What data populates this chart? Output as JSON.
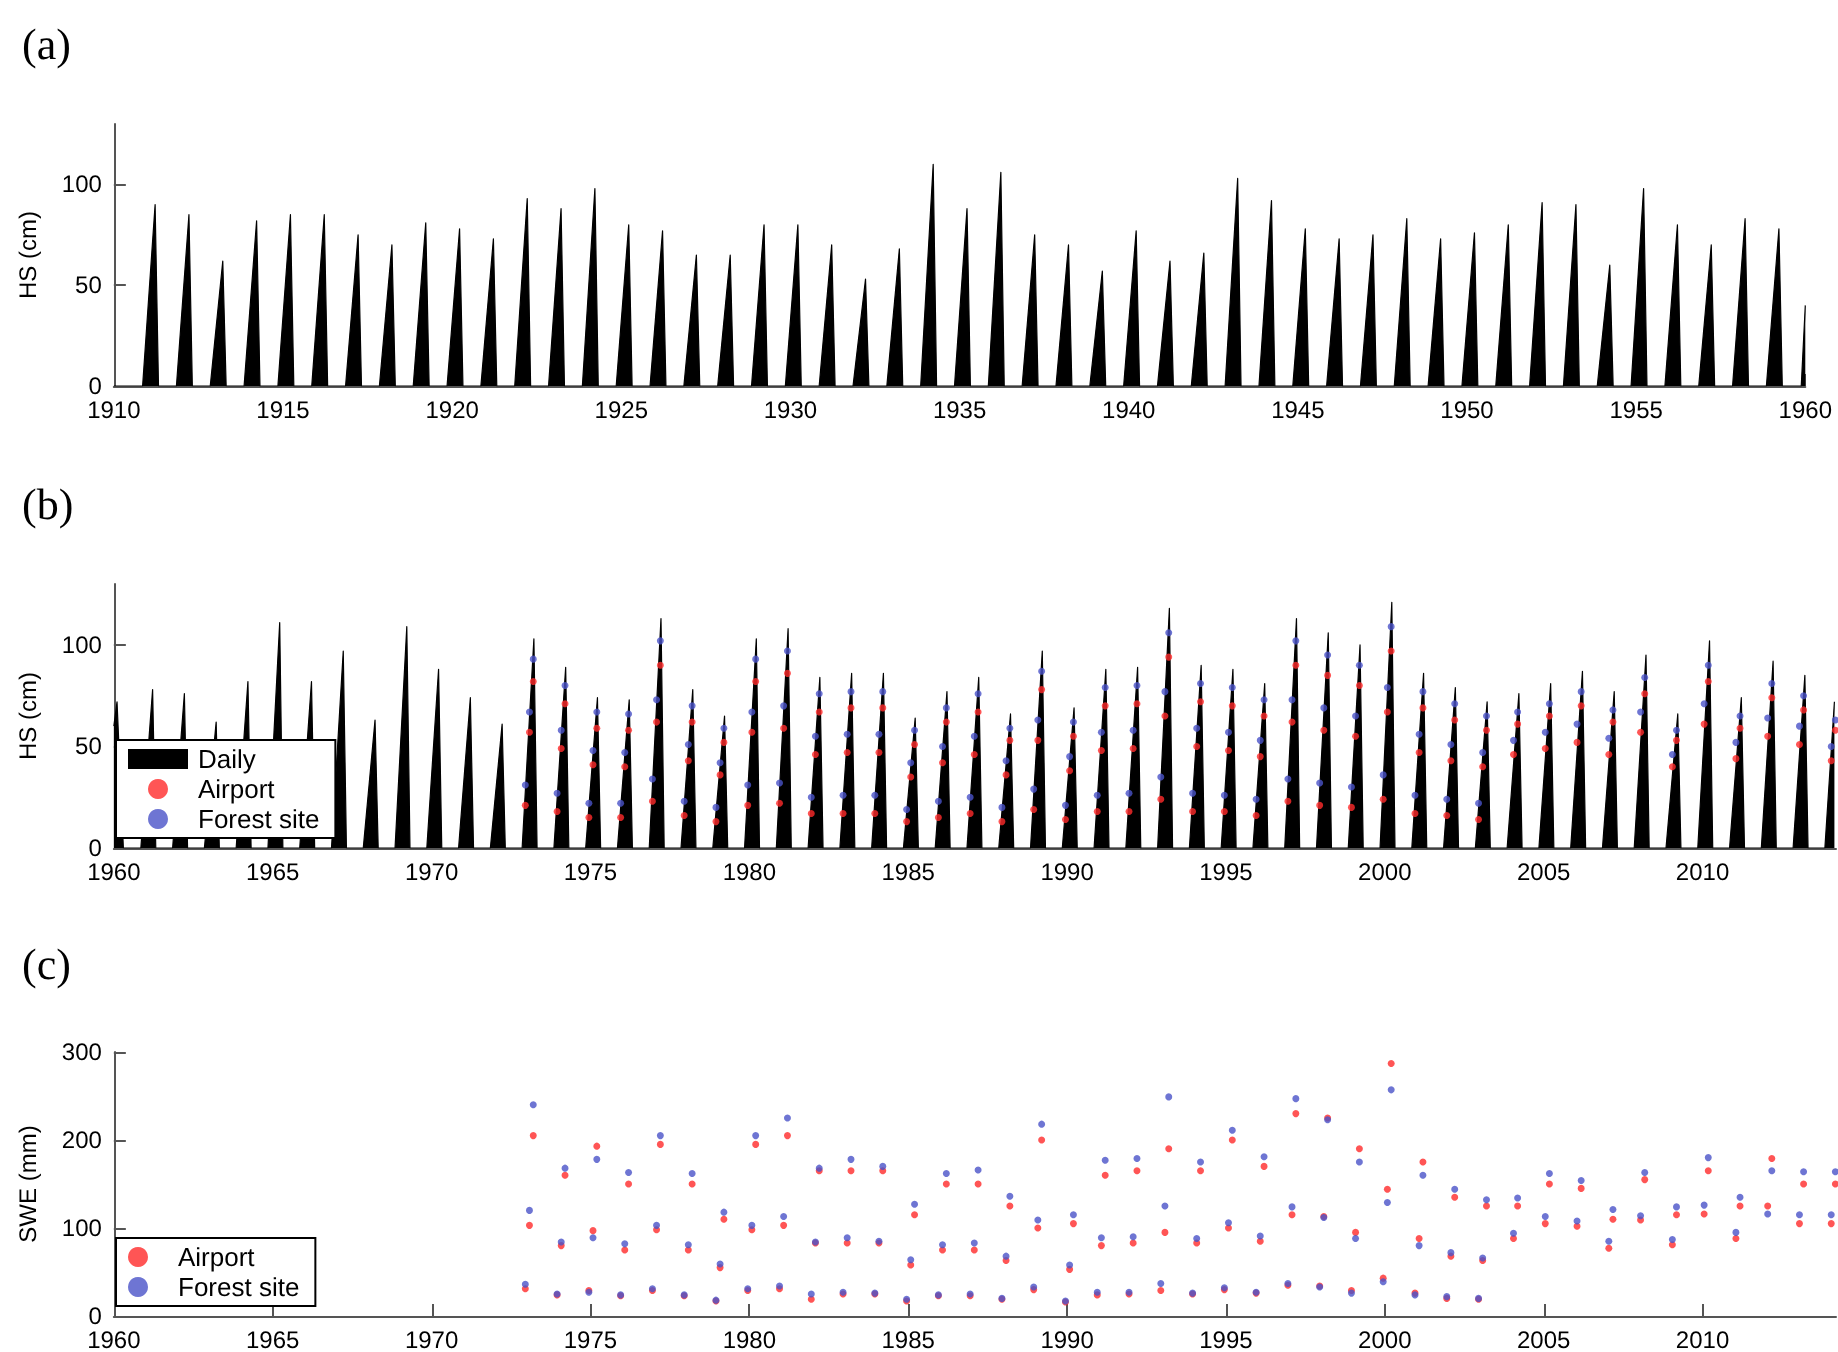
{
  "chart_data": [
    {
      "type": "area",
      "title": "(a)",
      "ylabel": "HS (cm)",
      "color": "#000000",
      "xlim": [
        1910,
        1960
      ],
      "ylim": [
        0,
        130
      ],
      "xticks": [
        1910,
        1915,
        1920,
        1925,
        1930,
        1935,
        1940,
        1945,
        1950,
        1955,
        1960
      ],
      "yticks": [
        0,
        50,
        100
      ],
      "x": [
        1910,
        1910.85,
        1911.22,
        1911.32,
        1911.85,
        1912.22,
        1912.32,
        1912.85,
        1913.22,
        1913.32,
        1913.85,
        1914.22,
        1914.32,
        1914.85,
        1915.22,
        1915.32,
        1915.85,
        1916.22,
        1916.32,
        1916.85,
        1917.22,
        1917.32,
        1917.85,
        1918.22,
        1918.32,
        1918.85,
        1919.22,
        1919.32,
        1919.85,
        1920.22,
        1920.32,
        1920.85,
        1921.22,
        1921.32,
        1921.85,
        1922.22,
        1922.32,
        1922.85,
        1923.22,
        1923.32,
        1923.85,
        1924.22,
        1924.32,
        1924.85,
        1925.22,
        1925.32,
        1925.85,
        1926.22,
        1926.32,
        1926.85,
        1927.22,
        1927.32,
        1927.85,
        1928.22,
        1928.32,
        1928.85,
        1929.22,
        1929.32,
        1929.85,
        1930.22,
        1930.32,
        1930.85,
        1931.22,
        1931.32,
        1931.85,
        1932.22,
        1932.32,
        1932.85,
        1933.22,
        1933.32,
        1933.85,
        1934.22,
        1934.32,
        1934.85,
        1935.22,
        1935.32,
        1935.85,
        1936.22,
        1936.32,
        1936.85,
        1937.22,
        1937.32,
        1937.85,
        1938.22,
        1938.32,
        1938.85,
        1939.22,
        1939.32,
        1939.85,
        1940.22,
        1940.32,
        1940.85,
        1941.22,
        1941.32,
        1941.85,
        1942.22,
        1942.32,
        1942.85,
        1943.22,
        1943.32,
        1943.85,
        1944.22,
        1944.32,
        1944.85,
        1945.22,
        1945.32,
        1945.85,
        1946.22,
        1946.32,
        1946.85,
        1947.22,
        1947.32,
        1947.85,
        1948.22,
        1948.32,
        1948.85,
        1949.22,
        1949.32,
        1949.85,
        1950.22,
        1950.32,
        1950.85,
        1951.22,
        1951.32,
        1951.85,
        1952.22,
        1952.32,
        1952.85,
        1953.22,
        1953.32,
        1953.85,
        1954.22,
        1954.32,
        1954.85,
        1955.22,
        1955.32,
        1955.85,
        1956.22,
        1956.32,
        1956.85,
        1957.22,
        1957.32,
        1957.85,
        1958.22,
        1958.32,
        1958.85,
        1959.22,
        1959.32,
        1959.88,
        1960
      ],
      "values": [
        0,
        0,
        90,
        0,
        0,
        85,
        0,
        0,
        62,
        0,
        0,
        82,
        0,
        0,
        85,
        0,
        0,
        85,
        0,
        0,
        75,
        0,
        0,
        70,
        0,
        0,
        81,
        0,
        0,
        78,
        0,
        0,
        73,
        0,
        0,
        93,
        0,
        0,
        88,
        0,
        0,
        98,
        0,
        0,
        80,
        0,
        0,
        77,
        0,
        0,
        65,
        0,
        0,
        65,
        0,
        0,
        80,
        0,
        0,
        80,
        0,
        0,
        70,
        0,
        0,
        53,
        0,
        0,
        68,
        0,
        0,
        110,
        0,
        0,
        88,
        0,
        0,
        106,
        0,
        0,
        75,
        0,
        0,
        70,
        0,
        0,
        57,
        0,
        0,
        77,
        0,
        0,
        62,
        0,
        0,
        66,
        0,
        0,
        103,
        0,
        0,
        92,
        0,
        0,
        78,
        0,
        0,
        73,
        0,
        0,
        75,
        0,
        0,
        83,
        0,
        0,
        73,
        0,
        0,
        76,
        0,
        0,
        80,
        0,
        0,
        91,
        0,
        0,
        90,
        0,
        0,
        60,
        0,
        0,
        98,
        0,
        0,
        80,
        0,
        0,
        70,
        0,
        0,
        83,
        0,
        0,
        78,
        0,
        0,
        40
      ]
    },
    {
      "type": "area",
      "title": "(b)",
      "ylabel": "HS (cm)",
      "legend": "bottom left",
      "xlim": [
        1960,
        2014.2
      ],
      "ylim": [
        0,
        130
      ],
      "xticks": [
        1960,
        1965,
        1970,
        1975,
        1980,
        1985,
        1990,
        1995,
        2000,
        2005,
        2010
      ],
      "yticks": [
        0,
        50,
        100
      ],
      "x": [
        1960,
        1960.1,
        1960.3,
        1960.85,
        1961.22,
        1961.32,
        1961.85,
        1962.22,
        1962.32,
        1962.85,
        1963.22,
        1963.32,
        1963.85,
        1964.22,
        1964.32,
        1964.85,
        1965.22,
        1965.32,
        1965.85,
        1966.22,
        1966.32,
        1966.85,
        1967.22,
        1967.32,
        1967.85,
        1968.22,
        1968.32,
        1968.85,
        1969.22,
        1969.32,
        1969.85,
        1970.22,
        1970.32,
        1970.85,
        1971.22,
        1971.32,
        1971.85,
        1972.22,
        1972.32,
        1972.85,
        1973.22,
        1973.32,
        1973.85,
        1974.22,
        1974.32,
        1974.85,
        1975.22,
        1975.32,
        1975.85,
        1976.22,
        1976.32,
        1976.85,
        1977.22,
        1977.32,
        1977.85,
        1978.22,
        1978.32,
        1978.85,
        1979.22,
        1979.32,
        1979.85,
        1980.22,
        1980.32,
        1980.85,
        1981.22,
        1981.32,
        1981.85,
        1982.22,
        1982.32,
        1982.85,
        1983.22,
        1983.32,
        1983.85,
        1984.22,
        1984.32,
        1984.85,
        1985.22,
        1985.32,
        1985.85,
        1986.22,
        1986.32,
        1986.85,
        1987.22,
        1987.32,
        1987.85,
        1988.22,
        1988.32,
        1988.85,
        1989.22,
        1989.32,
        1989.85,
        1990.22,
        1990.32,
        1990.85,
        1991.22,
        1991.32,
        1991.85,
        1992.22,
        1992.32,
        1992.85,
        1993.22,
        1993.32,
        1993.85,
        1994.22,
        1994.32,
        1994.85,
        1995.22,
        1995.32,
        1995.85,
        1996.22,
        1996.32,
        1996.85,
        1997.22,
        1997.32,
        1997.85,
        1998.22,
        1998.32,
        1998.85,
        1999.22,
        1999.32,
        1999.85,
        2000.22,
        2000.32,
        2000.85,
        2001.22,
        2001.32,
        2001.85,
        2002.22,
        2002.32,
        2002.85,
        2003.22,
        2003.32,
        2003.85,
        2004.22,
        2004.32,
        2004.85,
        2005.22,
        2005.32,
        2005.85,
        2006.22,
        2006.32,
        2006.85,
        2007.22,
        2007.32,
        2007.85,
        2008.22,
        2008.32,
        2008.85,
        2009.22,
        2009.32,
        2009.85,
        2010.22,
        2010.32,
        2010.85,
        2011.22,
        2011.32,
        2011.85,
        2012.22,
        2012.32,
        2012.85,
        2013.22,
        2013.32,
        2013.85,
        2014.15
      ],
      "series": [
        {
          "name": "Daily",
          "color": "#000000",
          "values": [
            60,
            72,
            0,
            0,
            78,
            0,
            0,
            76,
            0,
            0,
            62,
            0,
            0,
            82,
            0,
            0,
            111,
            0,
            0,
            82,
            0,
            0,
            97,
            0,
            0,
            63,
            0,
            0,
            109,
            0,
            0,
            88,
            0,
            0,
            74,
            0,
            0,
            61,
            0,
            0,
            103,
            0,
            0,
            89,
            0,
            0,
            74,
            0,
            0,
            73,
            0,
            0,
            113,
            0,
            0,
            78,
            0,
            0,
            65,
            0,
            0,
            103,
            0,
            0,
            108,
            0,
            0,
            84,
            0,
            0,
            86,
            0,
            0,
            86,
            0,
            0,
            64,
            0,
            0,
            77,
            0,
            0,
            84,
            0,
            0,
            66,
            0,
            0,
            97,
            0,
            0,
            69,
            0,
            0,
            88,
            0,
            0,
            89,
            0,
            0,
            118,
            0,
            0,
            90,
            0,
            0,
            88,
            0,
            0,
            81,
            0,
            0,
            113,
            0,
            0,
            106,
            0,
            0,
            100,
            0,
            0,
            121,
            0,
            0,
            86,
            0,
            0,
            79,
            0,
            0,
            72,
            0,
            0,
            76,
            0,
            0,
            81,
            0,
            0,
            87,
            0,
            0,
            77,
            0,
            0,
            95,
            0,
            0,
            66,
            0,
            0,
            102,
            0,
            0,
            74,
            0,
            0,
            92,
            0,
            0,
            85,
            0,
            0,
            72
          ]
        },
        {
          "name": "Airport",
          "type": "scatter",
          "marker": "circle",
          "color": "#ff2a2a",
          "x": [
            1972.95,
            1973.08,
            1973.2,
            1973.95,
            1974.08,
            1974.2,
            1974.95,
            1975.08,
            1975.2,
            1975.95,
            1976.08,
            1976.2,
            1976.95,
            1977.08,
            1977.2,
            1977.95,
            1978.08,
            1978.2,
            1978.95,
            1979.08,
            1979.2,
            1979.95,
            1980.08,
            1980.2,
            1980.95,
            1981.08,
            1981.2,
            1981.95,
            1982.08,
            1982.2,
            1982.95,
            1983.08,
            1983.2,
            1983.95,
            1984.08,
            1984.2,
            1984.95,
            1985.08,
            1985.2,
            1985.95,
            1986.08,
            1986.2,
            1986.95,
            1987.08,
            1987.2,
            1987.95,
            1988.08,
            1988.2,
            1988.95,
            1989.08,
            1989.2,
            1989.95,
            1990.08,
            1990.2,
            1990.95,
            1991.08,
            1991.2,
            1991.95,
            1992.08,
            1992.2,
            1992.95,
            1993.08,
            1993.2,
            1993.95,
            1994.08,
            1994.2,
            1994.95,
            1995.08,
            1995.2,
            1995.95,
            1996.08,
            1996.2,
            1996.95,
            1997.08,
            1997.2,
            1997.95,
            1998.08,
            1998.2,
            1998.95,
            1999.08,
            1999.2,
            1999.95,
            2000.08,
            2000.2,
            2000.95,
            2001.08,
            2001.2,
            2001.95,
            2002.08,
            2002.2,
            2002.95,
            2003.08,
            2003.2,
            2004.05,
            2004.18,
            2005.05,
            2005.18,
            2006.05,
            2006.18,
            2007.05,
            2007.18,
            2008.05,
            2008.18,
            2009.05,
            2009.18,
            2010.05,
            2010.18,
            2011.05,
            2011.18,
            2012.05,
            2012.18,
            2013.05,
            2013.18,
            2014.05,
            2014.18
          ],
          "values": [
            21,
            57,
            82,
            18,
            49,
            71,
            15,
            41,
            59,
            15,
            40,
            58,
            23,
            62,
            90,
            16,
            43,
            62,
            13,
            36,
            52,
            21,
            57,
            82,
            22,
            59,
            86,
            17,
            46,
            67,
            17,
            47,
            69,
            17,
            47,
            69,
            13,
            35,
            51,
            15,
            42,
            62,
            17,
            46,
            67,
            13,
            36,
            53,
            19,
            53,
            78,
            14,
            38,
            55,
            18,
            48,
            70,
            18,
            49,
            71,
            24,
            65,
            94,
            18,
            50,
            72,
            18,
            48,
            70,
            16,
            45,
            65,
            23,
            62,
            90,
            21,
            58,
            85,
            20,
            55,
            80,
            24,
            67,
            97,
            17,
            47,
            69,
            16,
            43,
            63,
            14,
            40,
            58,
            46,
            61,
            49,
            65,
            52,
            70,
            46,
            62,
            57,
            76,
            40,
            53,
            61,
            82,
            44,
            59,
            55,
            74,
            51,
            68,
            43,
            58
          ]
        },
        {
          "name": "Forest site",
          "type": "scatter",
          "marker": "circle",
          "color": "#4a52c8",
          "x": [
            1972.95,
            1973.08,
            1973.2,
            1973.95,
            1974.08,
            1974.2,
            1974.95,
            1975.08,
            1975.2,
            1975.95,
            1976.08,
            1976.2,
            1976.95,
            1977.08,
            1977.2,
            1977.95,
            1978.08,
            1978.2,
            1978.95,
            1979.08,
            1979.2,
            1979.95,
            1980.08,
            1980.2,
            1980.95,
            1981.08,
            1981.2,
            1981.95,
            1982.08,
            1982.2,
            1982.95,
            1983.08,
            1983.2,
            1983.95,
            1984.08,
            1984.2,
            1984.95,
            1985.08,
            1985.2,
            1985.95,
            1986.08,
            1986.2,
            1986.95,
            1987.08,
            1987.2,
            1987.95,
            1988.08,
            1988.2,
            1988.95,
            1989.08,
            1989.2,
            1989.95,
            1990.08,
            1990.2,
            1990.95,
            1991.08,
            1991.2,
            1991.95,
            1992.08,
            1992.2,
            1992.95,
            1993.08,
            1993.2,
            1993.95,
            1994.08,
            1994.2,
            1994.95,
            1995.08,
            1995.2,
            1995.95,
            1996.08,
            1996.2,
            1996.95,
            1997.08,
            1997.2,
            1997.95,
            1998.08,
            1998.2,
            1998.95,
            1999.08,
            1999.2,
            1999.95,
            2000.08,
            2000.2,
            2000.95,
            2001.08,
            2001.2,
            2001.95,
            2002.08,
            2002.2,
            2002.95,
            2003.08,
            2003.2,
            2004.05,
            2004.18,
            2005.05,
            2005.18,
            2006.05,
            2006.18,
            2007.05,
            2007.18,
            2008.05,
            2008.18,
            2009.05,
            2009.18,
            2010.05,
            2010.18,
            2011.05,
            2011.18,
            2012.05,
            2012.18,
            2013.05,
            2013.18,
            2014.05,
            2014.18
          ],
          "values": [
            31,
            67,
            93,
            27,
            58,
            80,
            22,
            48,
            67,
            22,
            47,
            66,
            34,
            73,
            102,
            23,
            51,
            70,
            20,
            42,
            59,
            31,
            67,
            93,
            32,
            70,
            97,
            25,
            55,
            76,
            26,
            56,
            77,
            26,
            56,
            77,
            19,
            42,
            58,
            23,
            50,
            69,
            25,
            55,
            76,
            20,
            43,
            59,
            29,
            63,
            87,
            21,
            45,
            62,
            26,
            57,
            79,
            27,
            58,
            80,
            35,
            77,
            106,
            27,
            59,
            81,
            26,
            57,
            79,
            24,
            53,
            73,
            34,
            73,
            102,
            32,
            69,
            95,
            30,
            65,
            90,
            36,
            79,
            109,
            26,
            56,
            77,
            24,
            51,
            71,
            22,
            47,
            65,
            53,
            67,
            57,
            71,
            61,
            77,
            54,
            68,
            67,
            84,
            46,
            58,
            71,
            90,
            52,
            65,
            64,
            81,
            60,
            75,
            50,
            63
          ]
        }
      ]
    },
    {
      "type": "scatter",
      "title": "(c)",
      "ylabel": "SWE (mm)",
      "legend": "bottom left",
      "marker": "circle",
      "xlim": [
        1960,
        2014.2
      ],
      "ylim": [
        0,
        300
      ],
      "xticks": [
        1960,
        1965,
        1970,
        1975,
        1980,
        1985,
        1990,
        1995,
        2000,
        2005,
        2010
      ],
      "yticks": [
        0,
        100,
        200,
        300
      ],
      "x": [
        1972.95,
        1973.08,
        1973.2,
        1973.95,
        1974.08,
        1974.2,
        1974.95,
        1975.08,
        1975.2,
        1975.95,
        1976.08,
        1976.2,
        1976.95,
        1977.08,
        1977.2,
        1977.95,
        1978.08,
        1978.2,
        1978.95,
        1979.08,
        1979.2,
        1979.95,
        1980.08,
        1980.2,
        1980.95,
        1981.08,
        1981.2,
        1981.95,
        1982.08,
        1982.2,
        1982.95,
        1983.08,
        1983.2,
        1983.95,
        1984.08,
        1984.2,
        1984.95,
        1985.08,
        1985.2,
        1985.95,
        1986.08,
        1986.2,
        1986.95,
        1987.08,
        1987.2,
        1987.95,
        1988.08,
        1988.2,
        1988.95,
        1989.08,
        1989.2,
        1989.95,
        1990.08,
        1990.2,
        1990.95,
        1991.08,
        1991.2,
        1991.95,
        1992.08,
        1992.2,
        1992.95,
        1993.08,
        1993.2,
        1993.95,
        1994.08,
        1994.2,
        1994.95,
        1995.08,
        1995.2,
        1995.95,
        1996.08,
        1996.2,
        1996.95,
        1997.08,
        1997.2,
        1997.95,
        1998.08,
        1998.2,
        1998.95,
        1999.08,
        1999.2,
        1999.95,
        2000.08,
        2000.2,
        2000.95,
        2001.08,
        2001.2,
        2001.95,
        2002.08,
        2002.2,
        2002.95,
        2003.08,
        2003.2,
        2004.05,
        2004.18,
        2005.05,
        2005.18,
        2006.05,
        2006.18,
        2007.05,
        2007.18,
        2008.05,
        2008.18,
        2009.05,
        2009.18,
        2010.05,
        2010.18,
        2011.05,
        2011.18,
        2012.05,
        2012.18,
        2013.05,
        2013.18,
        2014.05,
        2014.18
      ],
      "series": [
        {
          "name": "Airport",
          "color": "#ff2a2a",
          "values": [
            31,
            103,
            205,
            24,
            80,
            160,
            29,
            97,
            193,
            23,
            75,
            150,
            29,
            98,
            195,
            23,
            75,
            150,
            17,
            55,
            110,
            29,
            98,
            195,
            31,
            103,
            205,
            19,
            83,
            165,
            25,
            83,
            165,
            25,
            83,
            165,
            17,
            58,
            115,
            23,
            75,
            150,
            23,
            75,
            150,
            19,
            63,
            125,
            30,
            100,
            200,
            16,
            53,
            105,
            24,
            80,
            160,
            25,
            83,
            165,
            29,
            95,
            190,
            25,
            83,
            165,
            30,
            100,
            200,
            26,
            85,
            170,
            35,
            115,
            230,
            34,
            113,
            225,
            29,
            95,
            190,
            43,
            144,
            287,
            26,
            88,
            175,
            20,
            68,
            135,
            19,
            63,
            125,
            88,
            125,
            105,
            150,
            102,
            145,
            77,
            110,
            109,
            155,
            81,
            115,
            116,
            165,
            88,
            125,
            125,
            179,
            105,
            150,
            105,
            150
          ]
        },
        {
          "name": "Forest site",
          "color": "#4a52c8",
          "values": [
            36,
            120,
            240,
            25,
            84,
            168,
            27,
            89,
            178,
            24,
            82,
            163,
            31,
            103,
            205,
            24,
            81,
            162,
            18,
            59,
            118,
            31,
            103,
            205,
            34,
            113,
            225,
            25,
            84,
            168,
            27,
            89,
            178,
            26,
            85,
            170,
            19,
            64,
            127,
            24,
            81,
            162,
            25,
            83,
            166,
            20,
            68,
            136,
            33,
            109,
            218,
            17,
            58,
            115,
            27,
            89,
            177,
            27,
            90,
            179,
            37,
            125,
            249,
            26,
            88,
            175,
            32,
            106,
            211,
            27,
            91,
            181,
            37,
            124,
            247,
            33,
            112,
            223,
            26,
            88,
            175,
            39,
            129,
            257,
            24,
            80,
            160,
            22,
            72,
            144,
            20,
            66,
            132,
            94,
            134,
            113,
            162,
            108,
            154,
            85,
            121,
            114,
            163,
            87,
            124,
            126,
            180,
            95,
            135,
            116,
            165,
            115,
            164,
            115,
            164
          ]
        }
      ]
    }
  ]
}
